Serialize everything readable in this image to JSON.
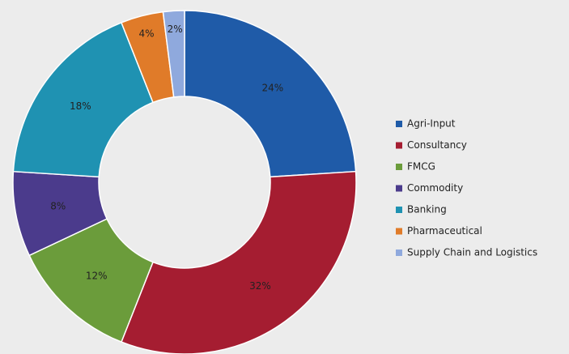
{
  "chart_data": {
    "type": "donut",
    "categories": [
      "Agri-Input",
      "Consultancy",
      "FMCG",
      "Commodity",
      "Banking",
      "Pharmaceutical",
      "Supply Chain and Logistics"
    ],
    "values": [
      24,
      32,
      12,
      8,
      18,
      4,
      2
    ],
    "value_labels": [
      "24%",
      "32%",
      "12%",
      "8%",
      "18%",
      "4%",
      "2%"
    ],
    "colors": [
      "#1f5ba8",
      "#a51d31",
      "#6b9c3b",
      "#4b3b8c",
      "#1f92b2",
      "#e07b29",
      "#8fa9dd"
    ],
    "legend": "right"
  }
}
